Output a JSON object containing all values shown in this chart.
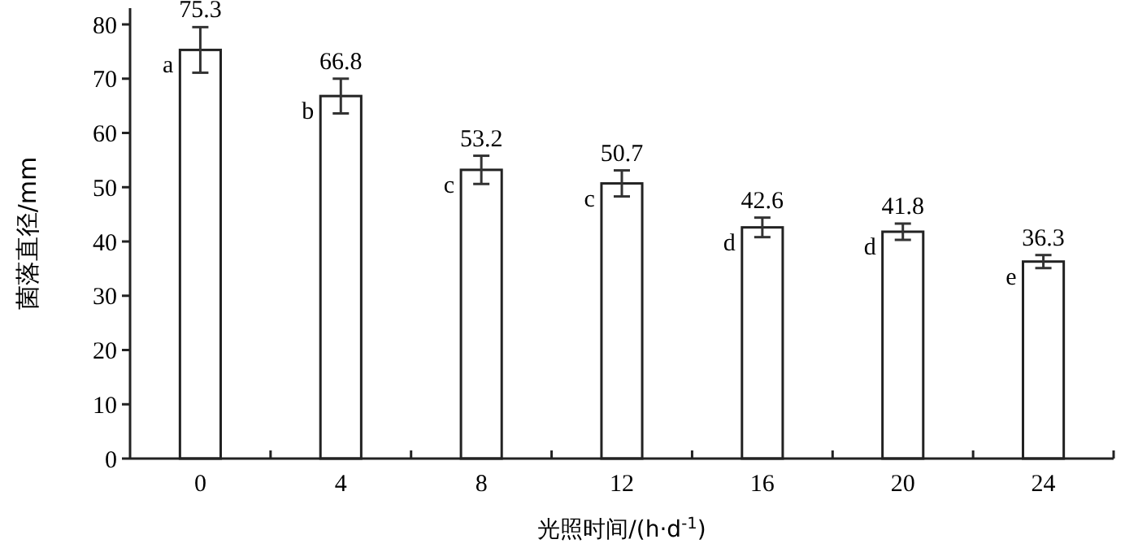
{
  "chart_data": {
    "type": "bar",
    "xlabel": "光照时间/(h·d$^{-1}$)",
    "ylabel": "菌落直径/mm",
    "categories": [
      "0",
      "4",
      "8",
      "12",
      "16",
      "20",
      "24"
    ],
    "values": [
      75.3,
      66.8,
      53.2,
      50.7,
      42.6,
      41.8,
      36.3
    ],
    "errors": [
      4.2,
      3.2,
      2.6,
      2.4,
      1.8,
      1.5,
      1.2
    ],
    "color": "#ffffff",
    "data_labels": true,
    "ylim": [
      0,
      83
    ],
    "yticks": [
      0,
      10,
      20,
      30,
      40,
      50,
      60,
      70,
      80
    ],
    "grid": false,
    "annotations": [
      {
        "text": "a",
        "x": "0",
        "y": 75.3
      },
      {
        "text": "b",
        "x": "4",
        "y": 66.8
      },
      {
        "text": "c",
        "x": "8",
        "y": 53.2
      },
      {
        "text": "c",
        "x": "12",
        "y": 50.7
      },
      {
        "text": "d",
        "x": "16",
        "y": 42.6
      },
      {
        "text": "d",
        "x": "20",
        "y": 41.8
      },
      {
        "text": "e",
        "x": "24",
        "y": 36.3
      }
    ]
  }
}
